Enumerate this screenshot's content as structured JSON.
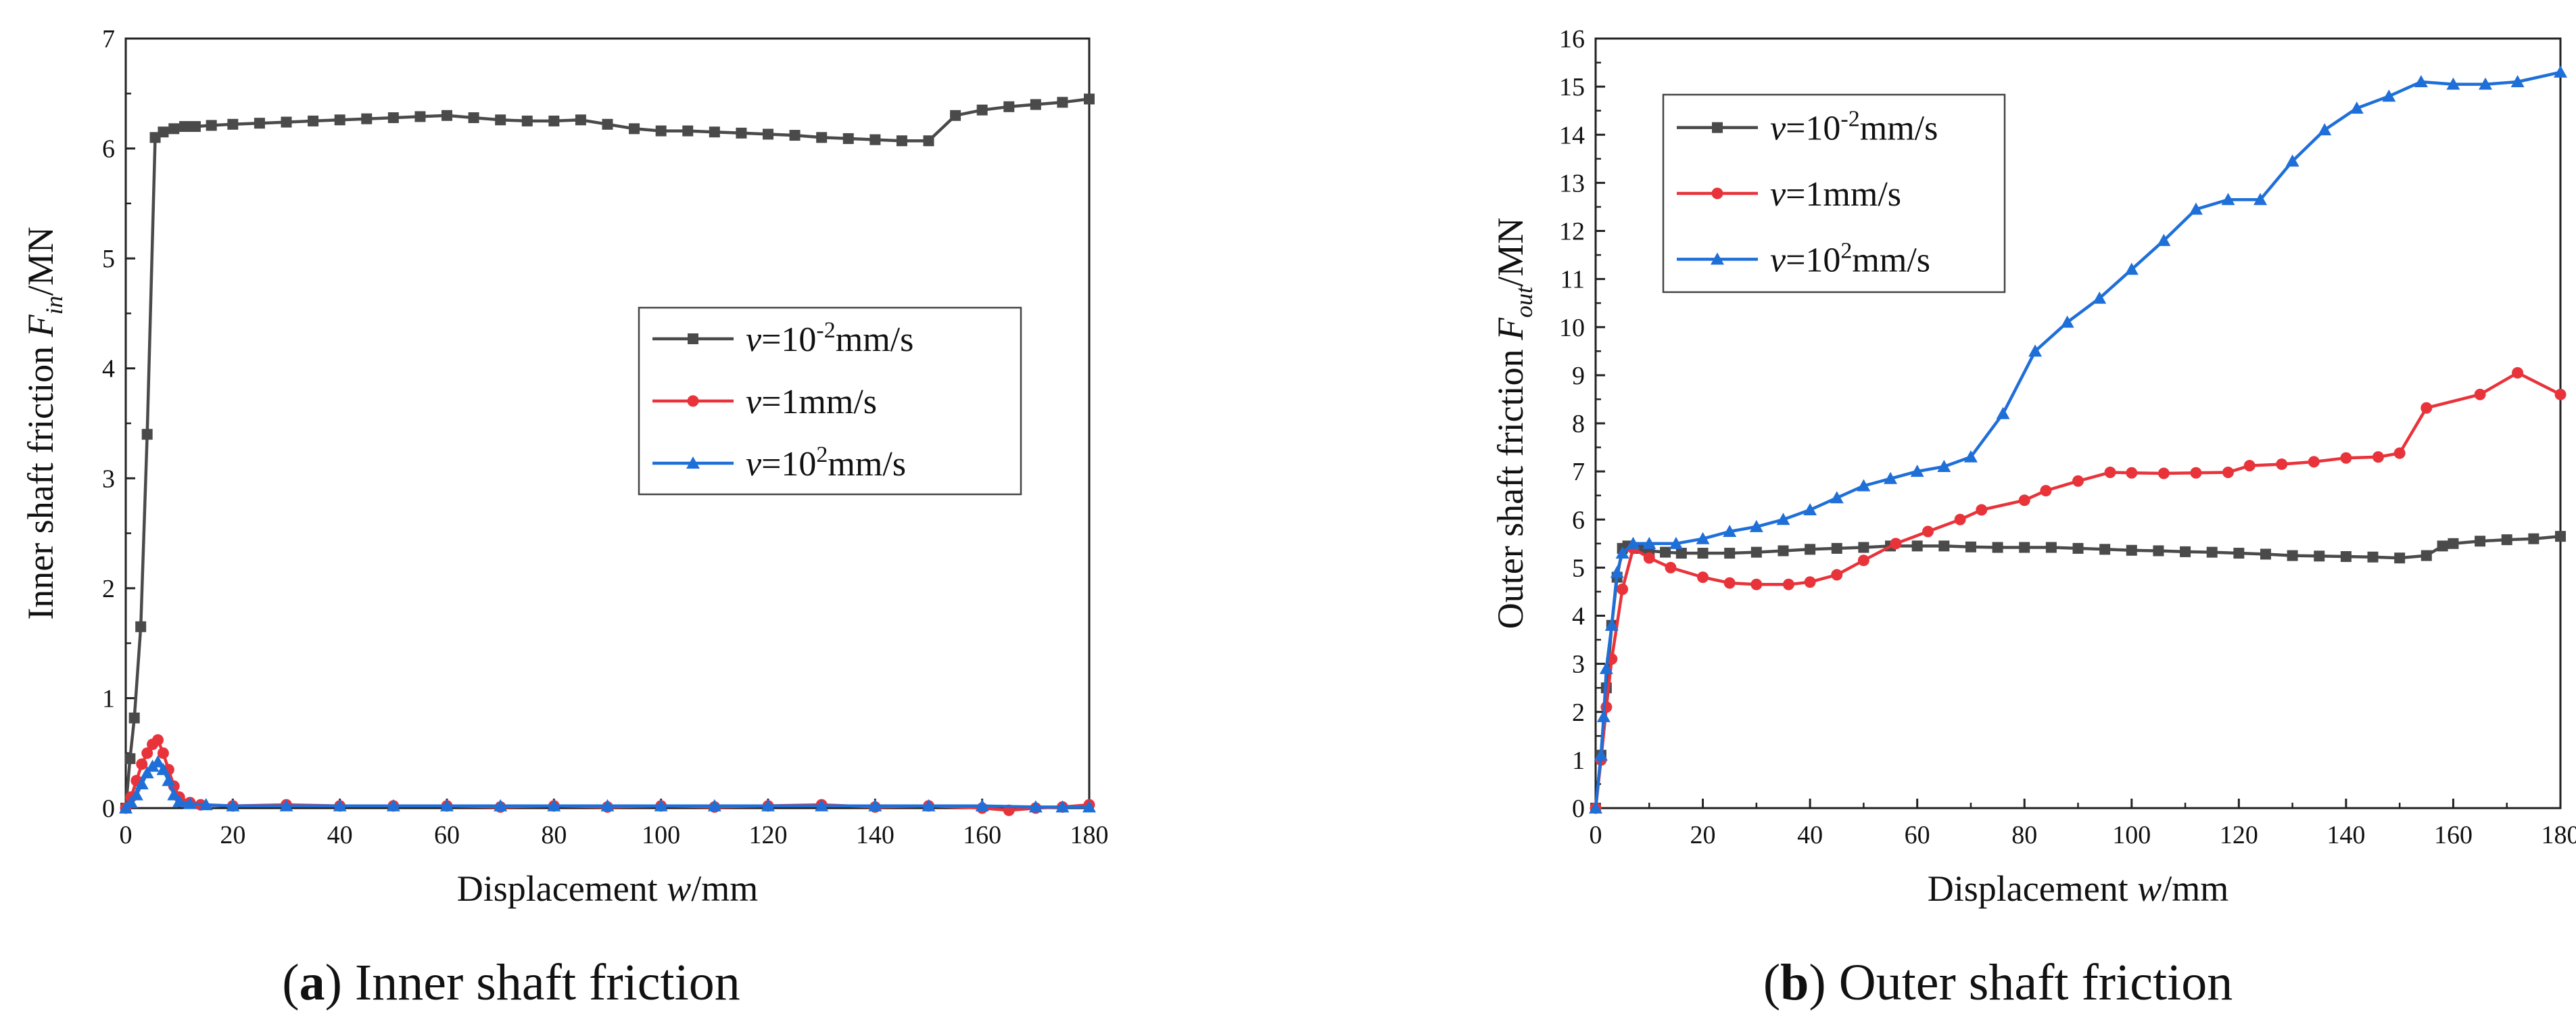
{
  "chart_data": [
    {
      "id": "a",
      "type": "line",
      "caption": {
        "letter": "a",
        "text": " Inner shaft friction"
      },
      "xlabel": {
        "prefix": "Displacement ",
        "var": "w",
        "suffix": "/mm"
      },
      "ylabel": {
        "prefix": "Inner shaft friction  ",
        "var": "F",
        "sub": "in",
        "suffix": "/MN"
      },
      "xlim": [
        0,
        180
      ],
      "ylim": [
        0,
        7
      ],
      "xticks": [
        0,
        20,
        40,
        60,
        80,
        100,
        120,
        140,
        160,
        180
      ],
      "yticks": [
        0,
        1,
        2,
        3,
        4,
        5,
        6,
        7
      ],
      "legend_position": "center-right",
      "series": [
        {
          "name": "v=10-2mm/s",
          "label": {
            "var": "v",
            "pre": "=10",
            "sup": "-2",
            "post": "mm/s"
          },
          "color": "#4a4a4a",
          "marker": "square",
          "x": [
            0,
            0.8,
            1.6,
            2.8,
            4,
            5.5,
            7,
            9,
            11,
            13,
            16,
            20,
            25,
            30,
            35,
            40,
            45,
            50,
            55,
            60,
            65,
            70,
            75,
            80,
            85,
            90,
            95,
            100,
            105,
            110,
            115,
            120,
            125,
            130,
            135,
            140,
            145,
            150,
            155,
            160,
            165,
            170,
            175,
            180
          ],
          "y": [
            0,
            0.45,
            0.82,
            1.65,
            3.4,
            6.1,
            6.15,
            6.18,
            6.2,
            6.2,
            6.21,
            6.22,
            6.23,
            6.24,
            6.25,
            6.26,
            6.27,
            6.28,
            6.29,
            6.3,
            6.28,
            6.26,
            6.25,
            6.25,
            6.26,
            6.22,
            6.18,
            6.16,
            6.16,
            6.15,
            6.14,
            6.13,
            6.12,
            6.1,
            6.09,
            6.08,
            6.07,
            6.07,
            6.3,
            6.35,
            6.38,
            6.4,
            6.42,
            6.45
          ]
        },
        {
          "name": "v=1mm/s",
          "label": {
            "var": "v",
            "pre": "=1mm/s",
            "sup": "",
            "post": ""
          },
          "color": "#e8333a",
          "marker": "circle",
          "x": [
            0,
            1,
            2,
            3,
            4,
            5,
            6,
            7,
            8,
            9,
            10,
            12,
            14,
            20,
            30,
            40,
            50,
            60,
            70,
            80,
            90,
            100,
            110,
            120,
            130,
            140,
            150,
            160,
            165,
            170,
            175,
            180
          ],
          "y": [
            0,
            0.1,
            0.25,
            0.4,
            0.5,
            0.58,
            0.62,
            0.5,
            0.35,
            0.2,
            0.1,
            0.05,
            0.03,
            0.02,
            0.03,
            0.02,
            0.02,
            0.02,
            0.01,
            0.02,
            0.01,
            0.02,
            0.01,
            0.02,
            0.03,
            0.01,
            0.02,
            0.0,
            -0.02,
            0.0,
            0.01,
            0.03
          ]
        },
        {
          "name": "v=102mm/s",
          "label": {
            "var": "v",
            "pre": "=10",
            "sup": "2",
            "post": "mm/s"
          },
          "color": "#1f6fd8",
          "marker": "triangle",
          "x": [
            0,
            1,
            2,
            3,
            4,
            5,
            6,
            7,
            8,
            9,
            10,
            12,
            15,
            20,
            30,
            40,
            50,
            60,
            70,
            80,
            90,
            100,
            110,
            120,
            130,
            140,
            150,
            160,
            170,
            175,
            180
          ],
          "y": [
            0,
            0.05,
            0.12,
            0.22,
            0.32,
            0.38,
            0.42,
            0.35,
            0.25,
            0.12,
            0.06,
            0.04,
            0.03,
            0.02,
            0.02,
            0.02,
            0.02,
            0.02,
            0.02,
            0.02,
            0.02,
            0.02,
            0.02,
            0.02,
            0.02,
            0.02,
            0.02,
            0.02,
            0.01,
            0.01,
            0.01
          ]
        }
      ]
    },
    {
      "id": "b",
      "type": "line",
      "caption": {
        "letter": "b",
        "text": " Outer shaft friction"
      },
      "xlabel": {
        "prefix": "Displacement ",
        "var": "w",
        "suffix": "/mm"
      },
      "ylabel": {
        "prefix": "Outer shaft friction  ",
        "var": "F",
        "sub": "out",
        "suffix": "/MN"
      },
      "xlim": [
        0,
        180
      ],
      "ylim": [
        0,
        16
      ],
      "xticks": [
        0,
        20,
        40,
        60,
        80,
        100,
        120,
        140,
        160,
        180
      ],
      "yticks": [
        0,
        1,
        2,
        3,
        4,
        5,
        6,
        7,
        8,
        9,
        10,
        11,
        12,
        13,
        14,
        15,
        16
      ],
      "legend_position": "top-left",
      "series": [
        {
          "name": "v=10-2mm/s",
          "label": {
            "var": "v",
            "pre": "=10",
            "sup": "-2",
            "post": "mm/s"
          },
          "color": "#4a4a4a",
          "marker": "square",
          "x": [
            0,
            1,
            2,
            3,
            4,
            5,
            6,
            8,
            10,
            13,
            16,
            20,
            25,
            30,
            35,
            40,
            45,
            50,
            55,
            60,
            65,
            70,
            75,
            80,
            85,
            90,
            95,
            100,
            105,
            110,
            115,
            120,
            125,
            130,
            135,
            140,
            145,
            150,
            155,
            158,
            160,
            165,
            170,
            175,
            180
          ],
          "y": [
            0,
            1.1,
            2.5,
            3.8,
            4.8,
            5.4,
            5.45,
            5.4,
            5.35,
            5.32,
            5.3,
            5.3,
            5.3,
            5.32,
            5.35,
            5.38,
            5.4,
            5.42,
            5.45,
            5.45,
            5.45,
            5.43,
            5.42,
            5.42,
            5.42,
            5.4,
            5.38,
            5.36,
            5.35,
            5.33,
            5.32,
            5.3,
            5.28,
            5.25,
            5.24,
            5.23,
            5.22,
            5.2,
            5.25,
            5.45,
            5.5,
            5.55,
            5.58,
            5.6,
            5.65
          ]
        },
        {
          "name": "v=1mm/s",
          "label": {
            "var": "v",
            "pre": "=1mm/s",
            "sup": "",
            "post": ""
          },
          "color": "#e8333a",
          "marker": "circle",
          "x": [
            0,
            1,
            2,
            3,
            5,
            7,
            10,
            14,
            20,
            25,
            30,
            36,
            40,
            45,
            50,
            56,
            62,
            68,
            72,
            80,
            84,
            90,
            96,
            100,
            106,
            112,
            118,
            122,
            128,
            134,
            140,
            146,
            150,
            155,
            165,
            172,
            180
          ],
          "y": [
            0,
            1.0,
            2.1,
            3.1,
            4.55,
            5.4,
            5.2,
            5.0,
            4.8,
            4.68,
            4.65,
            4.65,
            4.7,
            4.85,
            5.15,
            5.5,
            5.75,
            6.0,
            6.2,
            6.4,
            6.6,
            6.8,
            6.98,
            6.97,
            6.96,
            6.97,
            6.98,
            7.12,
            7.15,
            7.2,
            7.28,
            7.3,
            7.38,
            8.32,
            8.6,
            9.05,
            8.6
          ]
        },
        {
          "name": "v=102mm/s",
          "label": {
            "var": "v",
            "pre": "=10",
            "sup": "2",
            "post": "mm/s"
          },
          "color": "#1f6fd8",
          "marker": "triangle",
          "x": [
            0,
            1,
            1.5,
            2,
            3,
            4,
            5,
            7,
            10,
            15,
            20,
            25,
            30,
            35,
            40,
            45,
            50,
            55,
            60,
            65,
            70,
            76,
            82,
            88,
            94,
            100,
            106,
            112,
            118,
            124,
            130,
            136,
            142,
            148,
            154,
            160,
            166,
            172,
            180
          ],
          "y": [
            0,
            1.1,
            1.9,
            2.9,
            3.8,
            4.9,
            5.3,
            5.5,
            5.5,
            5.5,
            5.6,
            5.75,
            5.85,
            6.0,
            6.2,
            6.45,
            6.7,
            6.85,
            7.0,
            7.1,
            7.3,
            8.2,
            9.5,
            10.1,
            10.6,
            11.2,
            11.8,
            12.45,
            12.65,
            12.65,
            13.45,
            14.1,
            14.55,
            14.8,
            15.1,
            15.05,
            15.05,
            15.1,
            15.3
          ]
        }
      ]
    }
  ]
}
